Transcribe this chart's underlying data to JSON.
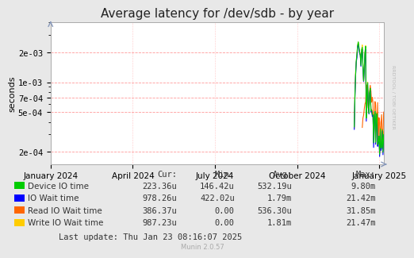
{
  "title": "Average latency for /dev/sdb - by year",
  "ylabel": "seconds",
  "background_color": "#e8e8e8",
  "plot_bg_color": "#ffffff",
  "grid_color": "#ff9999",
  "title_fontsize": 11,
  "axis_fontsize": 8,
  "tick_fontsize": 7.5,
  "legend_fontsize": 7.5,
  "watermark": "RRDTOOL / TOBI OETIKER",
  "footer": "Munin 2.0.57",
  "last_update": "Last update: Thu Jan 23 08:16:07 2025",
  "legend": [
    {
      "label": "Device IO time",
      "color": "#00cc00",
      "cur": "223.36u",
      "min": "146.42u",
      "avg": "532.19u",
      "max": "9.80m"
    },
    {
      "label": "IO Wait time",
      "color": "#0000ff",
      "cur": "978.26u",
      "min": "422.02u",
      "avg": "1.79m",
      "max": "21.42m"
    },
    {
      "label": "Read IO Wait time",
      "color": "#ff6600",
      "cur": "386.37u",
      "min": "0.00",
      "avg": "536.30u",
      "max": "31.85m"
    },
    {
      "label": "Write IO Wait time",
      "color": "#ffcc00",
      "cur": "987.23u",
      "min": "0.00",
      "avg": "1.81m",
      "max": "21.47m"
    }
  ],
  "x_tick_labels": [
    "January 2024",
    "April 2024",
    "July 2024",
    "October 2024",
    "January 2025"
  ],
  "x_tick_positions": [
    0.0,
    0.247,
    0.493,
    0.74,
    0.987
  ],
  "ylim_log": [
    0.00015,
    0.004
  ],
  "yticks": [
    0.0002,
    0.0005,
    0.0007,
    0.001,
    0.002
  ],
  "ytick_labels": [
    "2e-04",
    "5e-04",
    "7e-04",
    "1e-03",
    "2e-03"
  ]
}
